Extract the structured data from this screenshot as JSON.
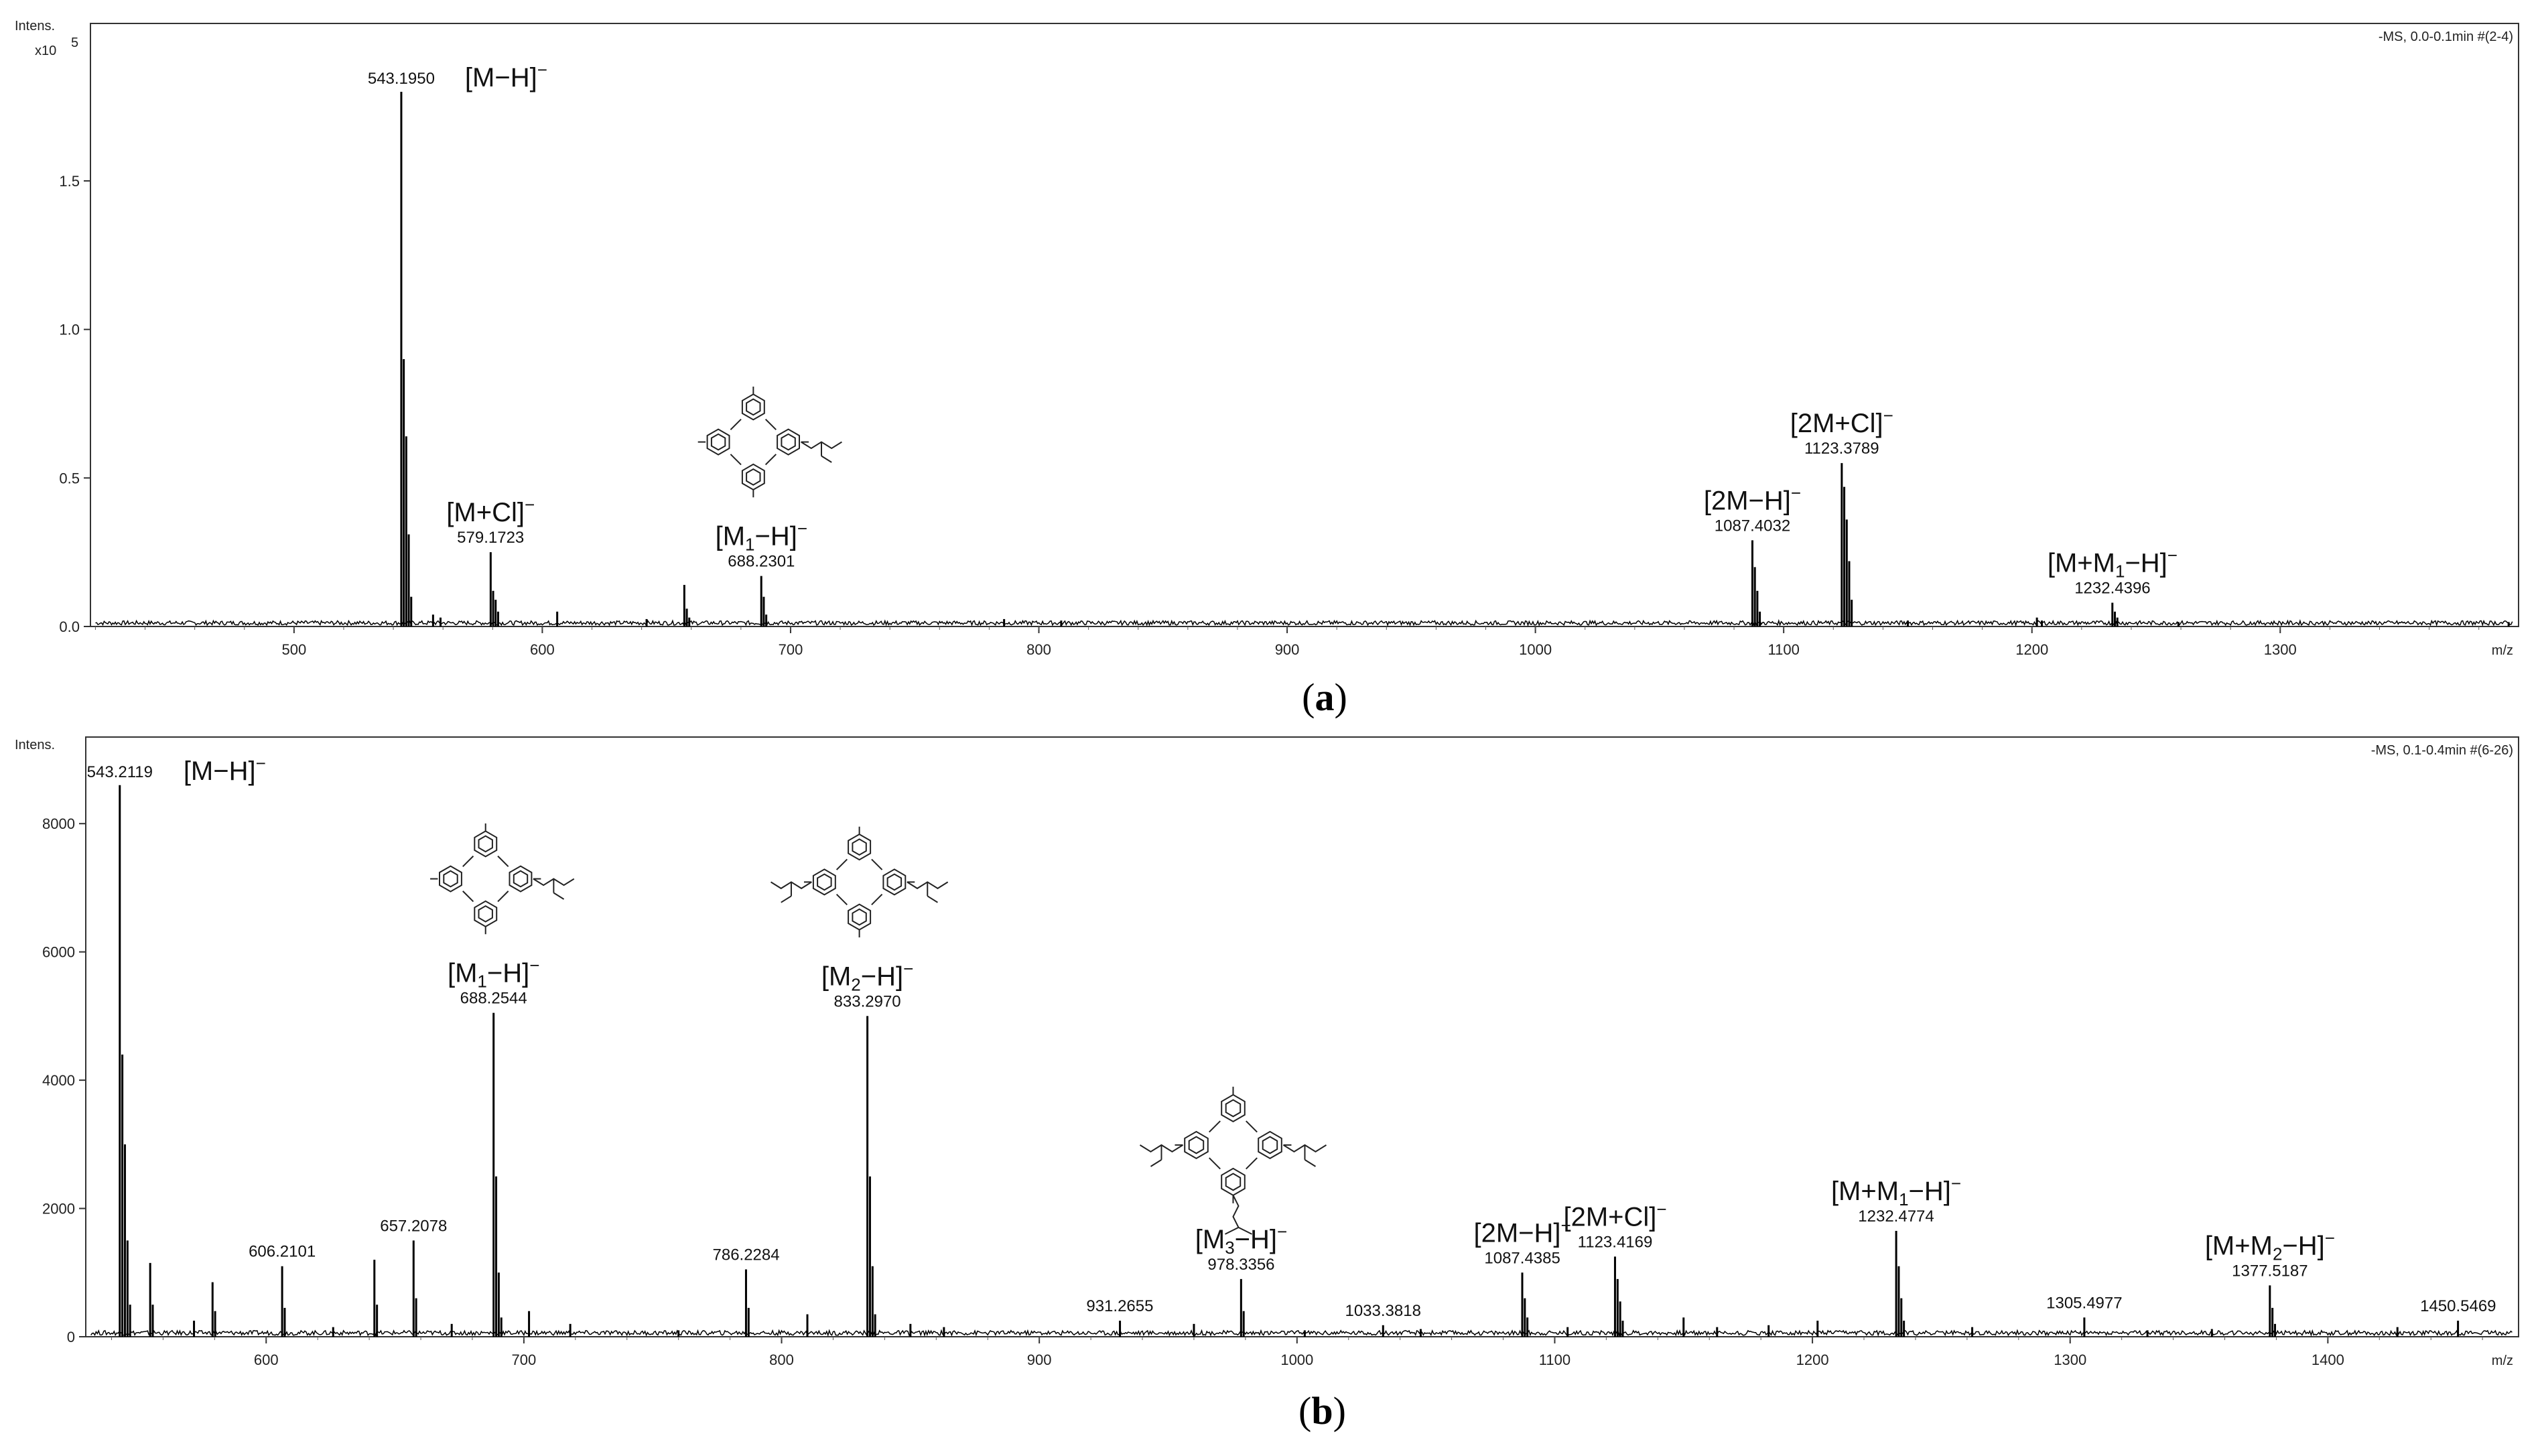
{
  "chart_data": [
    {
      "type": "line",
      "panel_label": "(a)",
      "panel_letter": "a",
      "y_axis_label": "Intens.",
      "y_scale_label": "x10",
      "y_scale_exp": "5",
      "x_axis_label": "m/z",
      "info": "-MS, 0.0-0.1min #(2-4)",
      "xlim": [
        418,
        1396
      ],
      "ylim": [
        0,
        2.03
      ],
      "x_ticks": [
        500,
        600,
        700,
        800,
        900,
        1000,
        1100,
        1200,
        1300
      ],
      "y_ticks": [
        0.0,
        0.5,
        1.0,
        1.5
      ],
      "y_tick_labels": [
        "0.0",
        "0.5",
        "1.0",
        "1.5"
      ],
      "baseline": 0.012,
      "peaks": [
        {
          "x": 543.2,
          "y": 1.8
        },
        {
          "x": 544.2,
          "y": 0.9
        },
        {
          "x": 545.2,
          "y": 0.64
        },
        {
          "x": 546.2,
          "y": 0.31
        },
        {
          "x": 547.2,
          "y": 0.1
        },
        {
          "x": 556,
          "y": 0.04
        },
        {
          "x": 559,
          "y": 0.03
        },
        {
          "x": 579.2,
          "y": 0.25
        },
        {
          "x": 580.2,
          "y": 0.12
        },
        {
          "x": 581.2,
          "y": 0.09
        },
        {
          "x": 582.2,
          "y": 0.05
        },
        {
          "x": 606,
          "y": 0.05
        },
        {
          "x": 642,
          "y": 0.025
        },
        {
          "x": 657.2,
          "y": 0.14
        },
        {
          "x": 658.2,
          "y": 0.06
        },
        {
          "x": 659.2,
          "y": 0.03
        },
        {
          "x": 688.2,
          "y": 0.17
        },
        {
          "x": 689.2,
          "y": 0.1
        },
        {
          "x": 690.2,
          "y": 0.04
        },
        {
          "x": 786,
          "y": 0.025
        },
        {
          "x": 809,
          "y": 0.02
        },
        {
          "x": 1087.4,
          "y": 0.29
        },
        {
          "x": 1088.4,
          "y": 0.2
        },
        {
          "x": 1089.4,
          "y": 0.12
        },
        {
          "x": 1090.4,
          "y": 0.05
        },
        {
          "x": 1123.4,
          "y": 0.55
        },
        {
          "x": 1124.4,
          "y": 0.47
        },
        {
          "x": 1125.4,
          "y": 0.36
        },
        {
          "x": 1126.4,
          "y": 0.22
        },
        {
          "x": 1127.4,
          "y": 0.09
        },
        {
          "x": 1150,
          "y": 0.02
        },
        {
          "x": 1202,
          "y": 0.03
        },
        {
          "x": 1204,
          "y": 0.02
        },
        {
          "x": 1232.4,
          "y": 0.08
        },
        {
          "x": 1233.4,
          "y": 0.05
        },
        {
          "x": 1234.4,
          "y": 0.03
        },
        {
          "x": 1259,
          "y": 0.015
        },
        {
          "x": 1392,
          "y": 0.015
        }
      ],
      "annotations": [
        {
          "x": 543.195,
          "value": "543.1950",
          "ion": "[M−H]",
          "side": "right"
        },
        {
          "x": 579.1723,
          "value": "579.1723",
          "ion": "[M+Cl]",
          "side": "above"
        },
        {
          "x": 688.2301,
          "value": "688.2301",
          "ion_pre": "[M",
          "ion_sub": "1",
          "ion_post": "−H]",
          "side": "above"
        },
        {
          "x": 1087.4032,
          "value": "1087.4032",
          "ion": "[2M−H]",
          "side": "above"
        },
        {
          "x": 1123.3789,
          "value": "1123.3789",
          "ion": "[2M+Cl]",
          "side": "above"
        },
        {
          "x": 1232.4396,
          "value": "1232.4396",
          "ion_pre": "[M+M",
          "ion_sub": "1",
          "ion_post": "−H]",
          "side": "above"
        }
      ],
      "structures": [
        {
          "x": 688.2301,
          "kind": "M1"
        }
      ]
    },
    {
      "type": "line",
      "panel_label": "(b)",
      "panel_letter": "b",
      "y_axis_label": "Intens.",
      "x_axis_label": "m/z",
      "info": "-MS, 0.1-0.4min #(6-26)",
      "xlim": [
        530,
        1474
      ],
      "ylim": [
        0,
        9350
      ],
      "x_ticks": [
        600,
        700,
        800,
        900,
        1000,
        1100,
        1200,
        1300,
        1400
      ],
      "y_ticks": [
        0,
        2000,
        4000,
        6000,
        8000
      ],
      "y_tick_labels": [
        "0",
        "2000",
        "4000",
        "6000",
        "8000"
      ],
      "baseline": 60,
      "peaks": [
        {
          "x": 543.2,
          "y": 8600
        },
        {
          "x": 544.2,
          "y": 4400
        },
        {
          "x": 545.2,
          "y": 3000
        },
        {
          "x": 546.2,
          "y": 1500
        },
        {
          "x": 547.2,
          "y": 500
        },
        {
          "x": 555,
          "y": 1150
        },
        {
          "x": 556,
          "y": 500
        },
        {
          "x": 572,
          "y": 250
        },
        {
          "x": 579.2,
          "y": 850
        },
        {
          "x": 580.2,
          "y": 400
        },
        {
          "x": 606.2,
          "y": 1100
        },
        {
          "x": 607.2,
          "y": 450
        },
        {
          "x": 626,
          "y": 150
        },
        {
          "x": 642,
          "y": 1200
        },
        {
          "x": 643,
          "y": 500
        },
        {
          "x": 657.2,
          "y": 1500
        },
        {
          "x": 658.2,
          "y": 600
        },
        {
          "x": 672,
          "y": 200
        },
        {
          "x": 688.25,
          "y": 5050
        },
        {
          "x": 689.25,
          "y": 2500
        },
        {
          "x": 690.25,
          "y": 1000
        },
        {
          "x": 691.25,
          "y": 300
        },
        {
          "x": 702,
          "y": 400
        },
        {
          "x": 718,
          "y": 200
        },
        {
          "x": 760,
          "y": 100
        },
        {
          "x": 786.2,
          "y": 1050
        },
        {
          "x": 787.2,
          "y": 450
        },
        {
          "x": 810,
          "y": 350
        },
        {
          "x": 833.3,
          "y": 5000
        },
        {
          "x": 834.3,
          "y": 2500
        },
        {
          "x": 835.3,
          "y": 1100
        },
        {
          "x": 836.3,
          "y": 350
        },
        {
          "x": 850,
          "y": 200
        },
        {
          "x": 863,
          "y": 150
        },
        {
          "x": 931.3,
          "y": 250
        },
        {
          "x": 960,
          "y": 200
        },
        {
          "x": 978.3,
          "y": 900
        },
        {
          "x": 979.3,
          "y": 400
        },
        {
          "x": 1003,
          "y": 100
        },
        {
          "x": 1033.4,
          "y": 180
        },
        {
          "x": 1048,
          "y": 120
        },
        {
          "x": 1087.4,
          "y": 1000
        },
        {
          "x": 1088.4,
          "y": 600
        },
        {
          "x": 1089.4,
          "y": 300
        },
        {
          "x": 1105,
          "y": 150
        },
        {
          "x": 1123.4,
          "y": 1250
        },
        {
          "x": 1124.4,
          "y": 900
        },
        {
          "x": 1125.4,
          "y": 550
        },
        {
          "x": 1126.4,
          "y": 250
        },
        {
          "x": 1150,
          "y": 300
        },
        {
          "x": 1163,
          "y": 150
        },
        {
          "x": 1183,
          "y": 180
        },
        {
          "x": 1202,
          "y": 250
        },
        {
          "x": 1232.5,
          "y": 1650
        },
        {
          "x": 1233.5,
          "y": 1100
        },
        {
          "x": 1234.5,
          "y": 600
        },
        {
          "x": 1235.5,
          "y": 250
        },
        {
          "x": 1262,
          "y": 150
        },
        {
          "x": 1305.5,
          "y": 300
        },
        {
          "x": 1330,
          "y": 100
        },
        {
          "x": 1355,
          "y": 120
        },
        {
          "x": 1377.5,
          "y": 800
        },
        {
          "x": 1378.5,
          "y": 450
        },
        {
          "x": 1379.5,
          "y": 200
        },
        {
          "x": 1427,
          "y": 150
        },
        {
          "x": 1450.5,
          "y": 250
        }
      ],
      "annotations": [
        {
          "x": 543.2119,
          "value": "543.2119",
          "ion": "[M−H]",
          "side": "right"
        },
        {
          "x": 606.2101,
          "value": "606.2101",
          "side": "above"
        },
        {
          "x": 657.2078,
          "value": "657.2078",
          "side": "above"
        },
        {
          "x": 688.2544,
          "value": "688.2544",
          "ion_pre": "[M",
          "ion_sub": "1",
          "ion_post": "−H]",
          "side": "above"
        },
        {
          "x": 786.2284,
          "value": "786.2284",
          "side": "above"
        },
        {
          "x": 833.297,
          "value": "833.2970",
          "ion_pre": "[M",
          "ion_sub": "2",
          "ion_post": "−H]",
          "side": "above"
        },
        {
          "x": 931.2655,
          "value": "931.2655",
          "side": "above"
        },
        {
          "x": 978.3356,
          "value": "978.3356",
          "ion_pre": "[M",
          "ion_sub": "3",
          "ion_post": "−H]",
          "side": "above"
        },
        {
          "x": 1033.3818,
          "value": "1033.3818",
          "side": "above"
        },
        {
          "x": 1087.4385,
          "value": "1087.4385",
          "ion": "[2M−H]",
          "side": "above"
        },
        {
          "x": 1123.4169,
          "value": "1123.4169",
          "ion": "[2M+Cl]",
          "side": "above"
        },
        {
          "x": 1232.4774,
          "value": "1232.4774",
          "ion_pre": "[M+M",
          "ion_sub": "1",
          "ion_post": "−H]",
          "side": "above"
        },
        {
          "x": 1305.4977,
          "value": "1305.4977",
          "side": "above"
        },
        {
          "x": 1377.5187,
          "value": "1377.5187",
          "ion_pre": "[M+M",
          "ion_sub": "2",
          "ion_post": "−H]",
          "side": "above"
        },
        {
          "x": 1450.5469,
          "value": "1450.5469",
          "side": "above"
        }
      ],
      "structures": [
        {
          "x": 688.2544,
          "kind": "M1"
        },
        {
          "x": 833.297,
          "kind": "M2"
        },
        {
          "x": 978.3356,
          "kind": "M3"
        }
      ]
    }
  ],
  "ion_superscript": "−"
}
